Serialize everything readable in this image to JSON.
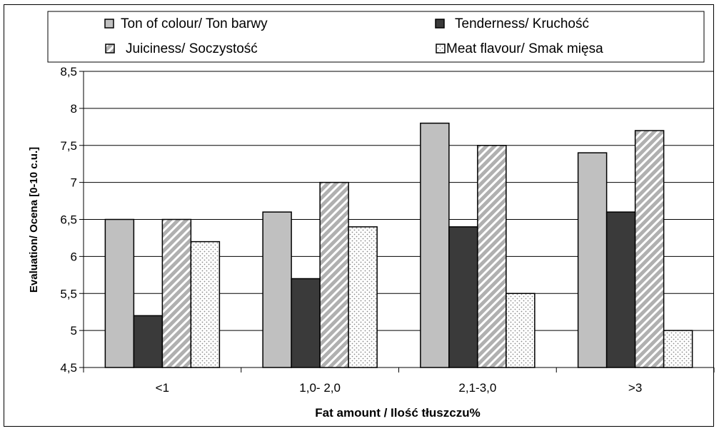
{
  "chart_data": {
    "type": "bar",
    "title": "",
    "xlabel": "Fat amount / Ilość tłuszczu%",
    "ylabel": "Evaluation/ Ocena [0-10 c.u.]",
    "ylim": [
      4.5,
      8.5
    ],
    "yticks": [
      "4,5",
      "5",
      "5,5",
      "6",
      "6,5",
      "7",
      "7,5",
      "8",
      "8,5"
    ],
    "categories": [
      "<1",
      "1,0- 2,0",
      "2,1-3,0",
      ">3"
    ],
    "grid": true,
    "legend_position": "top",
    "series": [
      {
        "name": "Ton of colour/ Ton barwy",
        "values": [
          6.5,
          6.6,
          7.8,
          7.4
        ],
        "color": "#c0c0c0",
        "pattern": "solid"
      },
      {
        "name": "Tenderness/ Kruchość",
        "values": [
          5.2,
          5.7,
          6.4,
          6.6
        ],
        "color": "#3a3a3a",
        "pattern": "solid"
      },
      {
        "name": "Juiciness/ Soczystość",
        "values": [
          6.5,
          7.0,
          7.5,
          7.7
        ],
        "color": "#b0b0b0",
        "pattern": "diagonal-stripes"
      },
      {
        "name": "Meat flavour/  Smak mięsa",
        "values": [
          6.2,
          6.4,
          5.5,
          5.0
        ],
        "color": "#ffffff",
        "pattern": "dots"
      }
    ]
  }
}
